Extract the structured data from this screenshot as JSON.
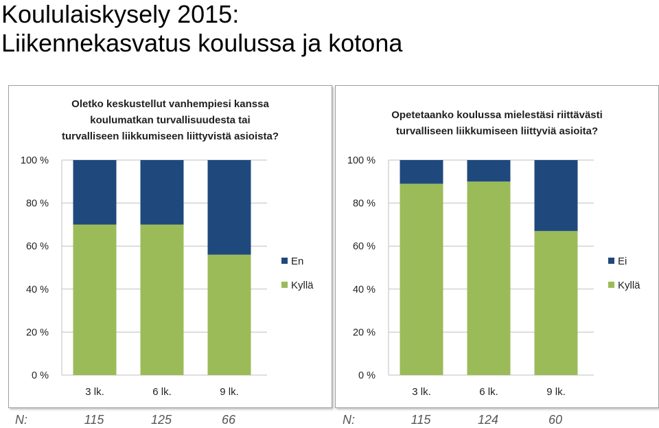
{
  "page": {
    "title_line1": "Koululaiskysely 2015:",
    "title_line2": "Liikennekasvatus koulussa ja kotona"
  },
  "colors": {
    "top_series": "#1f497d",
    "bottom_series": "#9bbb59",
    "gridline": "#bfbfbf"
  },
  "chart_data": [
    {
      "type": "bar",
      "stacked": true,
      "percent_stacked": true,
      "title_lines": [
        "Oletko keskustellut vanhempiesi kanssa",
        "koulumatkan turvallisuudesta tai",
        "turvalliseen liikkumiseen liittyvistä asioista?"
      ],
      "categories": [
        "3 lk.",
        "6 lk.",
        "9 lk."
      ],
      "series": [
        {
          "name": "Kyllä",
          "values": [
            70,
            70,
            56
          ]
        },
        {
          "name": "En",
          "values": [
            30,
            30,
            44
          ]
        }
      ],
      "y_ticks": [
        "0 %",
        "20 %",
        "40 %",
        "60 %",
        "80 %",
        "100 %"
      ],
      "ylim": [
        0,
        100
      ],
      "grid": true,
      "legend": "right",
      "n_label": "N:",
      "n_values": [
        "115",
        "125",
        "66"
      ]
    },
    {
      "type": "bar",
      "stacked": true,
      "percent_stacked": true,
      "title_lines": [
        "Opetetaanko koulussa mielestäsi riittävästi",
        "turvalliseen liikkumiseen liittyviä asioita?"
      ],
      "categories": [
        "3 lk.",
        "6 lk.",
        "9 lk."
      ],
      "series": [
        {
          "name": "Kyllä",
          "values": [
            89,
            90,
            67
          ]
        },
        {
          "name": "Ei",
          "values": [
            11,
            10,
            33
          ]
        }
      ],
      "y_ticks": [
        "0 %",
        "20 %",
        "40 %",
        "60 %",
        "80 %",
        "100 %"
      ],
      "ylim": [
        0,
        100
      ],
      "grid": true,
      "legend": "right",
      "n_label": "N:",
      "n_values": [
        "115",
        "124",
        "60"
      ]
    }
  ]
}
